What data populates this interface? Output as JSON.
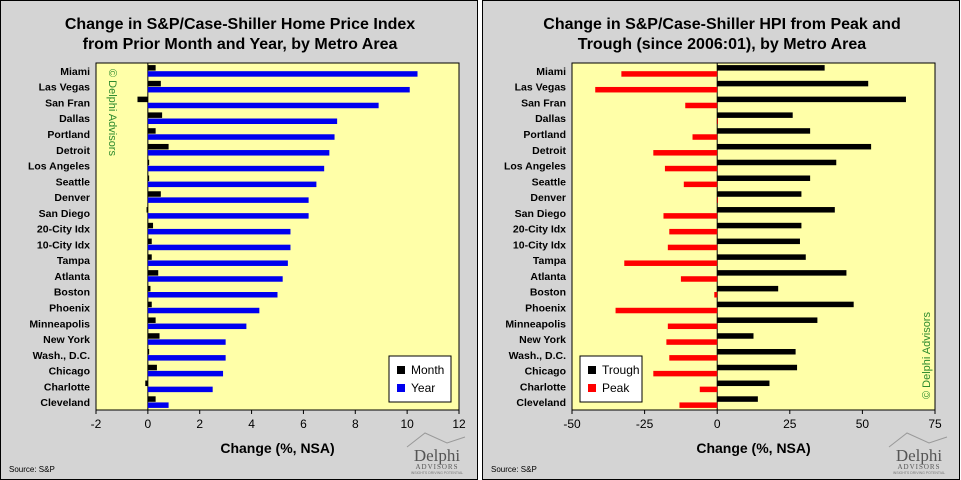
{
  "chart_data": [
    {
      "type": "bar",
      "orientation": "horizontal",
      "title": [
        "Change in S&P/Case-Shiller Home Price Index",
        "from Prior Month and Year, by Metro Area"
      ],
      "xlabel": "Change (%, NSA)",
      "xlim": [
        -2,
        12
      ],
      "xticks": [
        "-2",
        "0",
        "2",
        "4",
        "6",
        "8",
        "10",
        "12"
      ],
      "tick_values": [
        -2,
        0,
        2,
        4,
        6,
        8,
        10,
        12
      ],
      "categories": [
        "Miami",
        "Las Vegas",
        "San Fran",
        "Dallas",
        "Portland",
        "Detroit",
        "Los Angeles",
        "Seattle",
        "Denver",
        "San Diego",
        "20-City Idx",
        "10-City Idx",
        "Tampa",
        "Atlanta",
        "Boston",
        "Phoenix",
        "Minneapolis",
        "New York",
        "Wash., D.C.",
        "Chicago",
        "Charlotte",
        "Cleveland"
      ],
      "series": [
        {
          "name": "Month",
          "color": "#000000",
          "values": [
            0.3,
            0.5,
            -0.4,
            0.55,
            0.3,
            0.8,
            0.05,
            0.05,
            0.5,
            -0.05,
            0.2,
            0.15,
            0.15,
            0.4,
            0.1,
            0.15,
            0.3,
            0.45,
            0.05,
            0.35,
            -0.1,
            0.3
          ]
        },
        {
          "name": "Year",
          "color": "#0000ee",
          "values": [
            10.4,
            10.1,
            8.9,
            7.3,
            7.2,
            7.0,
            6.8,
            6.5,
            6.2,
            6.2,
            5.5,
            5.5,
            5.4,
            5.2,
            5.0,
            4.3,
            3.8,
            3.0,
            3.0,
            2.9,
            2.5,
            0.8
          ]
        }
      ],
      "legend": [
        "Month",
        "Year"
      ],
      "legend_position": "bottom-right",
      "watermark": "© Delphi Advisors",
      "source": "Source: S&P",
      "logo": {
        "big": "Delphi",
        "small": "ADVISORS",
        "tagline": "INSIGHTS DRIVING POTENTIAL"
      }
    },
    {
      "type": "bar",
      "orientation": "horizontal",
      "title": [
        "Change in S&P/Case-Shiller HPI from Peak and",
        "Trough (since 2006:01), by Metro Area"
      ],
      "xlabel": "Change (%, NSA)",
      "xlim": [
        -50,
        75
      ],
      "xticks": [
        "-50",
        "-25",
        "0",
        "25",
        "50",
        "75"
      ],
      "tick_values": [
        -50,
        -25,
        0,
        25,
        50,
        75
      ],
      "categories": [
        "Miami",
        "Las Vegas",
        "San Fran",
        "Dallas",
        "Portland",
        "Detroit",
        "Los Angeles",
        "Seattle",
        "Denver",
        "San Diego",
        "20-City Idx",
        "10-City Idx",
        "Tampa",
        "Atlanta",
        "Boston",
        "Phoenix",
        "Minneapolis",
        "New York",
        "Wash., D.C.",
        "Chicago",
        "Charlotte",
        "Cleveland"
      ],
      "series": [
        {
          "name": "Trough",
          "color": "#000000",
          "values": [
            37,
            52,
            65,
            26,
            32,
            53,
            41,
            32,
            29,
            40.5,
            29,
            28.5,
            30.5,
            44.5,
            21,
            47,
            34.5,
            12.5,
            27,
            27.5,
            18,
            14
          ]
        },
        {
          "name": "Peak",
          "color": "#ff0000",
          "values": [
            -33,
            -42,
            -11,
            0,
            -8.5,
            -22,
            -18,
            -11.5,
            0,
            -18.5,
            -16.5,
            -17,
            -32,
            -12.5,
            -1,
            -35,
            -17,
            -17.5,
            -16.5,
            -22,
            -6,
            -13
          ]
        }
      ],
      "legend": [
        "Trough",
        "Peak"
      ],
      "legend_position": "bottom-left",
      "watermark": "© Delphi Advisors",
      "source": "Source: S&P",
      "logo": {
        "big": "Delphi",
        "small": "ADVISORS",
        "tagline": "INSIGHTS DRIVING POTENTIAL"
      }
    }
  ]
}
